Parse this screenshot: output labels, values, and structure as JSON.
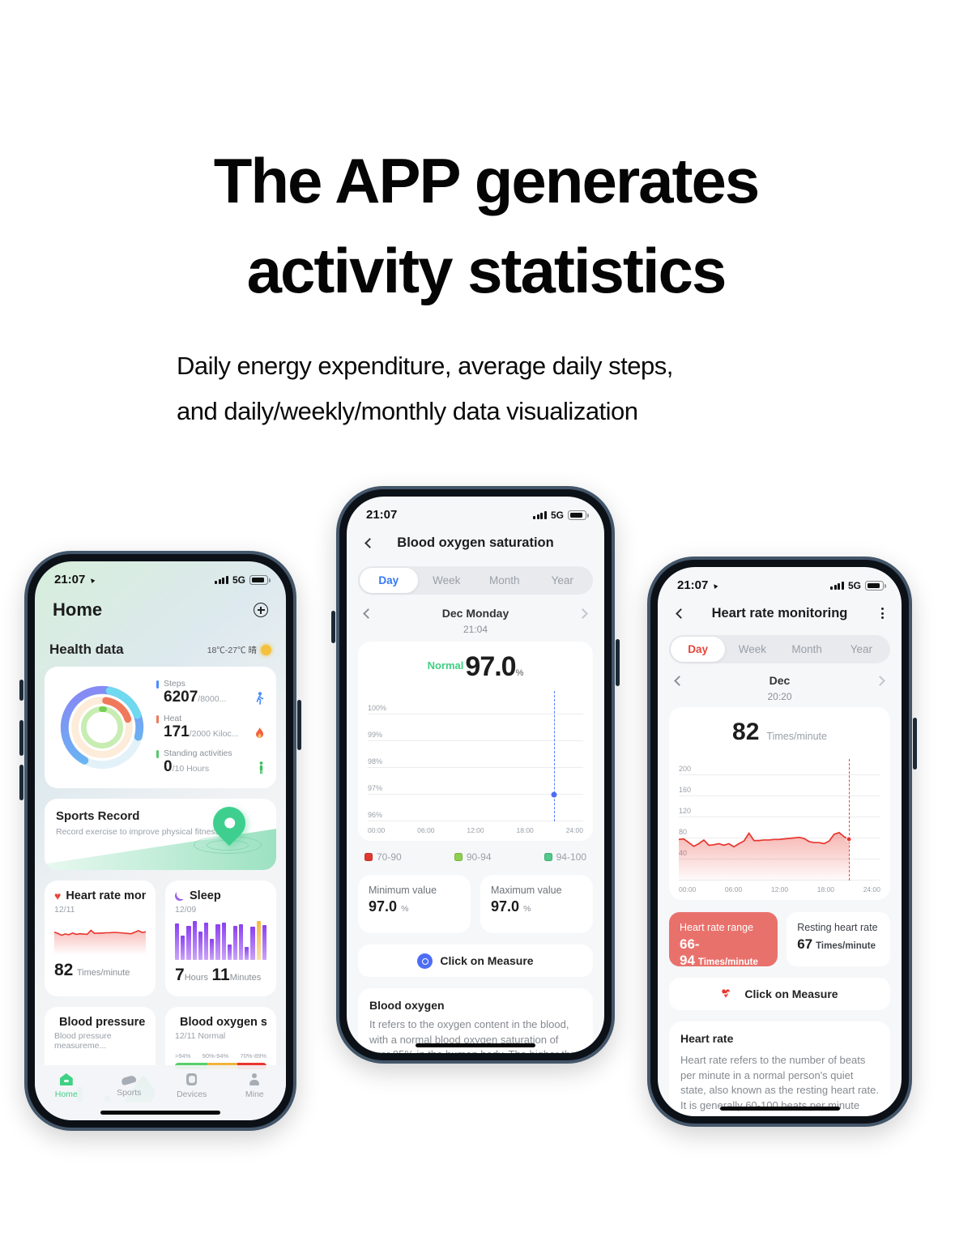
{
  "headline": {
    "line1": "The APP generates",
    "line2": "activity statistics"
  },
  "subtitle": {
    "line1": "Daily energy expenditure, average daily steps,",
    "line2": "and daily/weekly/monthly data visualization"
  },
  "colors": {
    "accent_blue": "#3478f6",
    "accent_red": "#e8453c",
    "accent_green": "#3ed184",
    "accent_purple": "#9a5ef0",
    "accent_orange": "#f0795c"
  },
  "phone_left": {
    "status": {
      "time": "21:07",
      "network": "5G"
    },
    "header": {
      "title": "Home"
    },
    "section": {
      "title": "Health data",
      "weather": "18℃-27℃ 晴"
    },
    "activity": {
      "steps_label": "Steps",
      "steps_value": "6207",
      "steps_goal": "/8000...",
      "heat_label": "Heat",
      "heat_value": "171",
      "heat_goal": "/2000 Kiloc...",
      "standing_label": "Standing activities",
      "standing_value": "0",
      "standing_goal": "/10 Hours"
    },
    "sports": {
      "title": "Sports Record",
      "subtitle": "Record exercise to improve physical fitness"
    },
    "heart_card": {
      "title": "Heart rate monitoring",
      "date": "12/11",
      "value": "82",
      "unit": "Times/minute",
      "series": [
        74,
        70,
        64,
        68,
        66,
        71,
        67,
        69,
        68,
        67,
        80,
        70,
        71,
        71,
        72,
        72,
        73,
        73,
        72,
        71,
        70,
        69,
        74,
        79,
        73,
        75
      ]
    },
    "sleep_card": {
      "title": "Sleep",
      "date": "12/09",
      "hours_value": "7",
      "hours_unit": "Hours",
      "minutes_value": "11",
      "minutes_unit": "Minutes",
      "bars": [
        0.93,
        0.62,
        0.88,
        1,
        0.72,
        0.95,
        0.55,
        0.92,
        0.95,
        0.4,
        0.88,
        0.92,
        0.34,
        0.85,
        1,
        0.9
      ]
    },
    "bp_card": {
      "title": "Blood pressure monitoring",
      "subtitle": "Blood pressure measureme..."
    },
    "spo2_card": {
      "title": "Blood oxygen saturation",
      "date": "12/11 Normal",
      "ranges": [
        ">94%",
        "90%-94%",
        "70%-89%"
      ]
    },
    "nav": [
      {
        "label": "Home"
      },
      {
        "label": "Sports"
      },
      {
        "label": "Devices"
      },
      {
        "label": "Mine"
      }
    ]
  },
  "phone_mid": {
    "status": {
      "time": "21:07",
      "network": "5G"
    },
    "nav_title": "Blood oxygen saturation",
    "tabs": [
      "Day",
      "Week",
      "Month",
      "Year"
    ],
    "date_label": "Dec Monday",
    "time_label": "21:04",
    "reading": {
      "status": "Normal",
      "value": "97.0",
      "unit": "%"
    },
    "chart": {
      "y_labels": [
        "100%",
        "99%",
        "98%",
        "97%",
        "96%"
      ],
      "x_labels": [
        "00:00",
        "06:00",
        "12:00",
        "18:00",
        "24:00"
      ],
      "point": {
        "time": "21:04",
        "value": 97.0
      }
    },
    "legend": [
      {
        "label": "70-90",
        "color": "#e0392e"
      },
      {
        "label": "90-94",
        "color": "#8ed04c"
      },
      {
        "label": "94-100",
        "color": "#4fc98c"
      }
    ],
    "min_card": {
      "label": "Minimum value",
      "value": "97.0",
      "unit": "%"
    },
    "max_card": {
      "label": "Maximum value",
      "value": "97.0",
      "unit": "%"
    },
    "measure_label": "Click on Measure",
    "info": {
      "title": "Blood oxygen",
      "body": "It refers to the oxygen content in the blood, with a normal blood oxygen saturation of over 95% in the human body. The higher the oxygen content in the blood, the better a person's metabolism. Of course, high blood oxygen content is not a good phenomenon. The blood oxygen in the human body has a certain degree of saturation. If it is too low, it will cause insufficient oxygen supply to the body, and if it is too high, it will lead to cell aging in the body."
    }
  },
  "phone_right": {
    "status": {
      "time": "21:07",
      "network": "5G"
    },
    "nav_title": "Heart rate monitoring",
    "tabs": [
      "Day",
      "Week",
      "Month",
      "Year"
    ],
    "date_label": "Dec",
    "time_label": "20:20",
    "reading": {
      "value": "82",
      "unit": "Times/minute"
    },
    "chart": {
      "y_labels": [
        "200",
        "160",
        "120",
        "80",
        "40"
      ],
      "x_labels": [
        "00:00",
        "06:00",
        "12:00",
        "18:00",
        "24:00"
      ],
      "series": [
        78,
        79,
        72,
        65,
        70,
        77,
        67,
        68,
        70,
        67,
        70,
        64,
        70,
        75,
        90,
        76,
        76,
        77,
        77,
        78,
        78,
        79,
        80,
        81,
        82,
        80,
        74,
        72,
        72,
        70,
        75,
        88,
        91,
        83,
        78
      ]
    },
    "range_card": {
      "label": "Heart rate range",
      "value": "66-94",
      "unit": "Times/minute"
    },
    "resting_card": {
      "label": "Resting heart rate",
      "value": "67",
      "unit": "Times/minute"
    },
    "measure_label": "Click on Measure",
    "info": {
      "title": "Heart rate",
      "body": "Heart rate refers to the number of beats per minute in a normal person's quiet state, also known as the resting heart rate. It is generally 60-100 beats per minute and may vary depending on age, gender, or other physiological factors. Generally speaking, the younger the age, the faster the heart rate. Elderly people's heart rate is slower than that of young people, and women's heart rate is faster than that of men of the same age. These are normal physiological phenomena."
    }
  }
}
